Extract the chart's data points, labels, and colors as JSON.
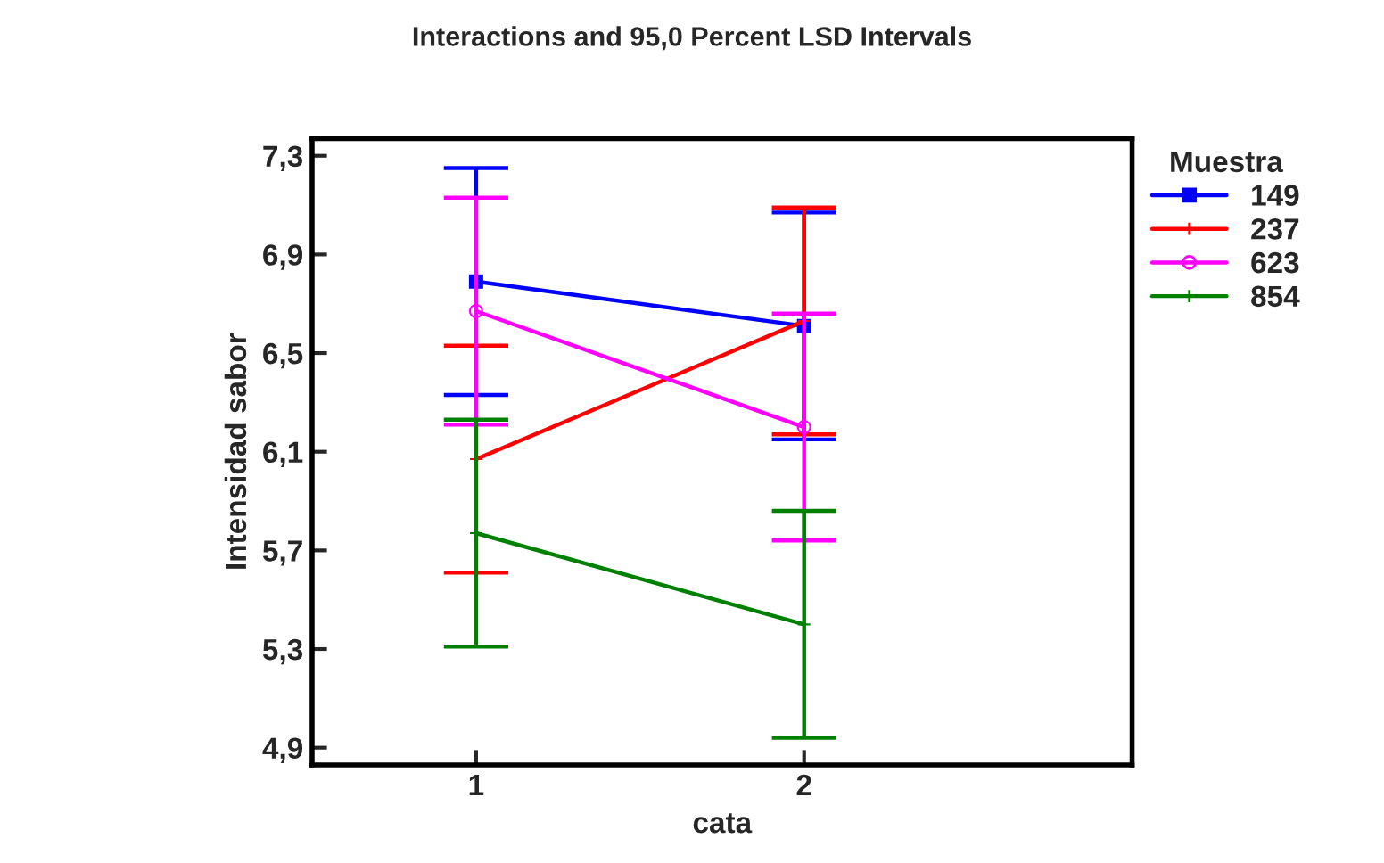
{
  "chart_data": {
    "type": "line",
    "title": "Interactions and 95,0 Percent LSD Intervals",
    "xlabel": "cata",
    "ylabel": "Intensidad sabor",
    "legend_title": "Muestra",
    "x": [
      1,
      2
    ],
    "series": [
      {
        "name": "149",
        "color": "#0000ff",
        "marker": "square",
        "values": [
          6.79,
          6.61
        ],
        "errors": [
          0.46,
          0.46
        ]
      },
      {
        "name": "237",
        "color": "#ff0000",
        "marker": "cross",
        "values": [
          6.07,
          6.63
        ],
        "errors": [
          0.46,
          0.46
        ]
      },
      {
        "name": "623",
        "color": "#ff00ff",
        "marker": "circle",
        "values": [
          6.67,
          6.2
        ],
        "errors": [
          0.46,
          0.46
        ]
      },
      {
        "name": "854",
        "color": "#008000",
        "marker": "cross",
        "values": [
          5.77,
          5.4
        ],
        "errors": [
          0.46,
          0.46
        ]
      }
    ],
    "xlim": [
      0.5,
      3.0
    ],
    "xticks": [
      1,
      2
    ],
    "ylim": [
      4.83,
      7.37
    ],
    "yticks": [
      {
        "value": 4.9,
        "label": "4,9"
      },
      {
        "value": 5.3,
        "label": "5,3"
      },
      {
        "value": 5.7,
        "label": "5,7"
      },
      {
        "value": 6.1,
        "label": "6,1"
      },
      {
        "value": 6.5,
        "label": "6,5"
      },
      {
        "value": 6.9,
        "label": "6,9"
      },
      {
        "value": 7.3,
        "label": "7,3"
      }
    ],
    "grid": false,
    "legend": "top right",
    "line_style": "solid"
  }
}
